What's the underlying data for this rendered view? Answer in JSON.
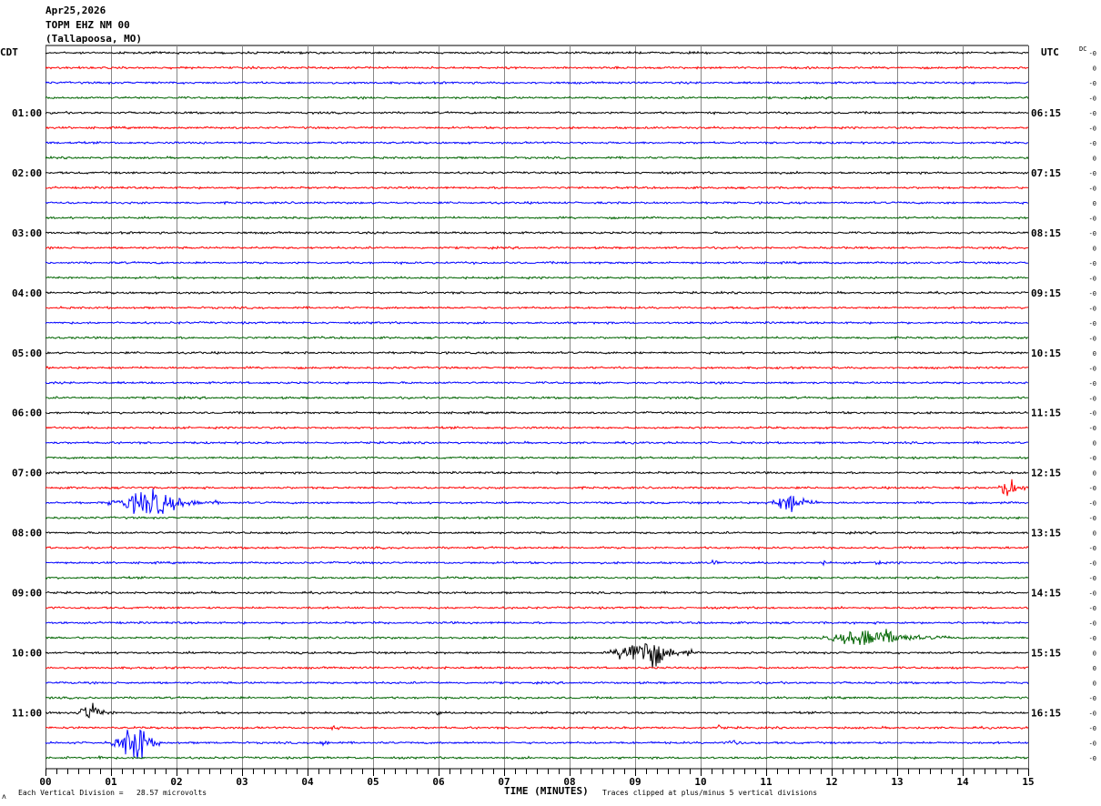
{
  "header": {
    "date": "Apr25,2026",
    "station": "TOPM EHZ NM 00",
    "location": "(Tallapoosa, MO)"
  },
  "left_timezone": "CDT",
  "right_timezone": "UTC",
  "dc_label": "DC",
  "footer": {
    "scale_note": "Each Vertical Division =   28.57 microvolts",
    "xlabel": "TIME (MINUTES)",
    "clip_note": "Traces clipped at plus/minus 5 vertical divisions",
    "corner_mark": "ʌ"
  },
  "chart_data": {
    "type": "line",
    "subtype": "helicorder",
    "xlabel": "TIME (MINUTES)",
    "xlim": [
      0,
      15
    ],
    "x_ticks": [
      "00",
      "01",
      "02",
      "03",
      "04",
      "05",
      "06",
      "07",
      "08",
      "09",
      "10",
      "11",
      "12",
      "13",
      "14",
      "15"
    ],
    "minor_tick_seconds": 10,
    "grid": "vertical lines every minute",
    "trace_count": 48,
    "trace_minutes": 15,
    "trace_colors": [
      "#000000",
      "#ff0000",
      "#0000ff",
      "#006400"
    ],
    "left_hour_labels": [
      "CDT",
      "01:00",
      "02:00",
      "03:00",
      "04:00",
      "05:00",
      "06:00",
      "07:00",
      "08:00",
      "09:00",
      "10:00",
      "11:00"
    ],
    "right_hour_labels": [
      "UTC",
      "06:15",
      "07:15",
      "08:15",
      "09:15",
      "10:15",
      "11:15",
      "12:15",
      "13:15",
      "14:15",
      "15:15",
      "16:15"
    ],
    "dc_offsets": [
      "-0",
      "0",
      "-0",
      "-0",
      "-0",
      "-0",
      "-0",
      "0",
      "-0",
      "-0",
      "0",
      "-0",
      "-0",
      "0",
      "-0",
      "-0",
      "-0",
      "-0",
      "-0",
      "-0",
      "0",
      "-0",
      "-0",
      "-0",
      "-0",
      "-0",
      "0",
      "-0",
      "0",
      "-0",
      "-0",
      "-0",
      "0",
      "-0",
      "-0",
      "-0",
      "-0",
      "-0",
      "-0",
      "-0",
      "0",
      "0",
      "0",
      "-0",
      "-0",
      "-0",
      "-0",
      "-0"
    ],
    "noise_amplitude_divisions": 0.08,
    "events": [
      {
        "trace": 30,
        "start_min": 0.95,
        "end_min": 2.65,
        "peak_min": 1.65,
        "amplitude_divisions": 1.3
      },
      {
        "trace": 30,
        "start_min": 11.0,
        "end_min": 11.85,
        "peak_min": 11.45,
        "amplitude_divisions": 1.0
      },
      {
        "trace": 29,
        "start_min": 14.55,
        "end_min": 15.0,
        "peak_min": 14.7,
        "amplitude_divisions": 1.2
      },
      {
        "trace": 29,
        "start_min": 10.3,
        "end_min": 10.5,
        "peak_min": 10.4,
        "amplitude_divisions": 0.2
      },
      {
        "trace": 34,
        "start_min": 10.15,
        "end_min": 10.35,
        "peak_min": 10.22,
        "amplitude_divisions": 0.4
      },
      {
        "trace": 34,
        "start_min": 12.6,
        "end_min": 12.85,
        "peak_min": 12.7,
        "amplitude_divisions": 0.35
      },
      {
        "trace": 34,
        "start_min": 11.8,
        "end_min": 12.1,
        "peak_min": 11.9,
        "amplitude_divisions": 0.2
      },
      {
        "trace": 39,
        "start_min": 11.8,
        "end_min": 13.8,
        "peak_min": 12.7,
        "amplitude_divisions": 1.0
      },
      {
        "trace": 40,
        "start_min": 8.6,
        "end_min": 9.9,
        "peak_min": 9.2,
        "amplitude_divisions": 1.7
      },
      {
        "trace": 40,
        "start_min": 3.85,
        "end_min": 4.0,
        "peak_min": 3.9,
        "amplitude_divisions": 0.2
      },
      {
        "trace": 41,
        "start_min": 6.05,
        "end_min": 6.2,
        "peak_min": 6.1,
        "amplitude_divisions": 0.2
      },
      {
        "trace": 44,
        "start_min": 0.45,
        "end_min": 1.05,
        "peak_min": 0.7,
        "amplitude_divisions": 1.0
      },
      {
        "trace": 44,
        "start_min": 5.9,
        "end_min": 6.15,
        "peak_min": 6.0,
        "amplitude_divisions": 0.25
      },
      {
        "trace": 45,
        "start_min": 4.2,
        "end_min": 4.7,
        "peak_min": 4.4,
        "amplitude_divisions": 0.3
      },
      {
        "trace": 45,
        "start_min": 10.2,
        "end_min": 10.5,
        "peak_min": 10.3,
        "amplitude_divisions": 0.3
      },
      {
        "trace": 46,
        "start_min": 1.0,
        "end_min": 1.75,
        "peak_min": 1.45,
        "amplitude_divisions": 1.9
      },
      {
        "trace": 46,
        "start_min": 4.05,
        "end_min": 4.55,
        "peak_min": 4.3,
        "amplitude_divisions": 0.3
      },
      {
        "trace": 46,
        "start_min": 10.3,
        "end_min": 11.0,
        "peak_min": 10.55,
        "amplitude_divisions": 0.3
      },
      {
        "trace": 47,
        "start_min": 0.75,
        "end_min": 0.95,
        "peak_min": 0.85,
        "amplitude_divisions": 0.3
      }
    ]
  }
}
